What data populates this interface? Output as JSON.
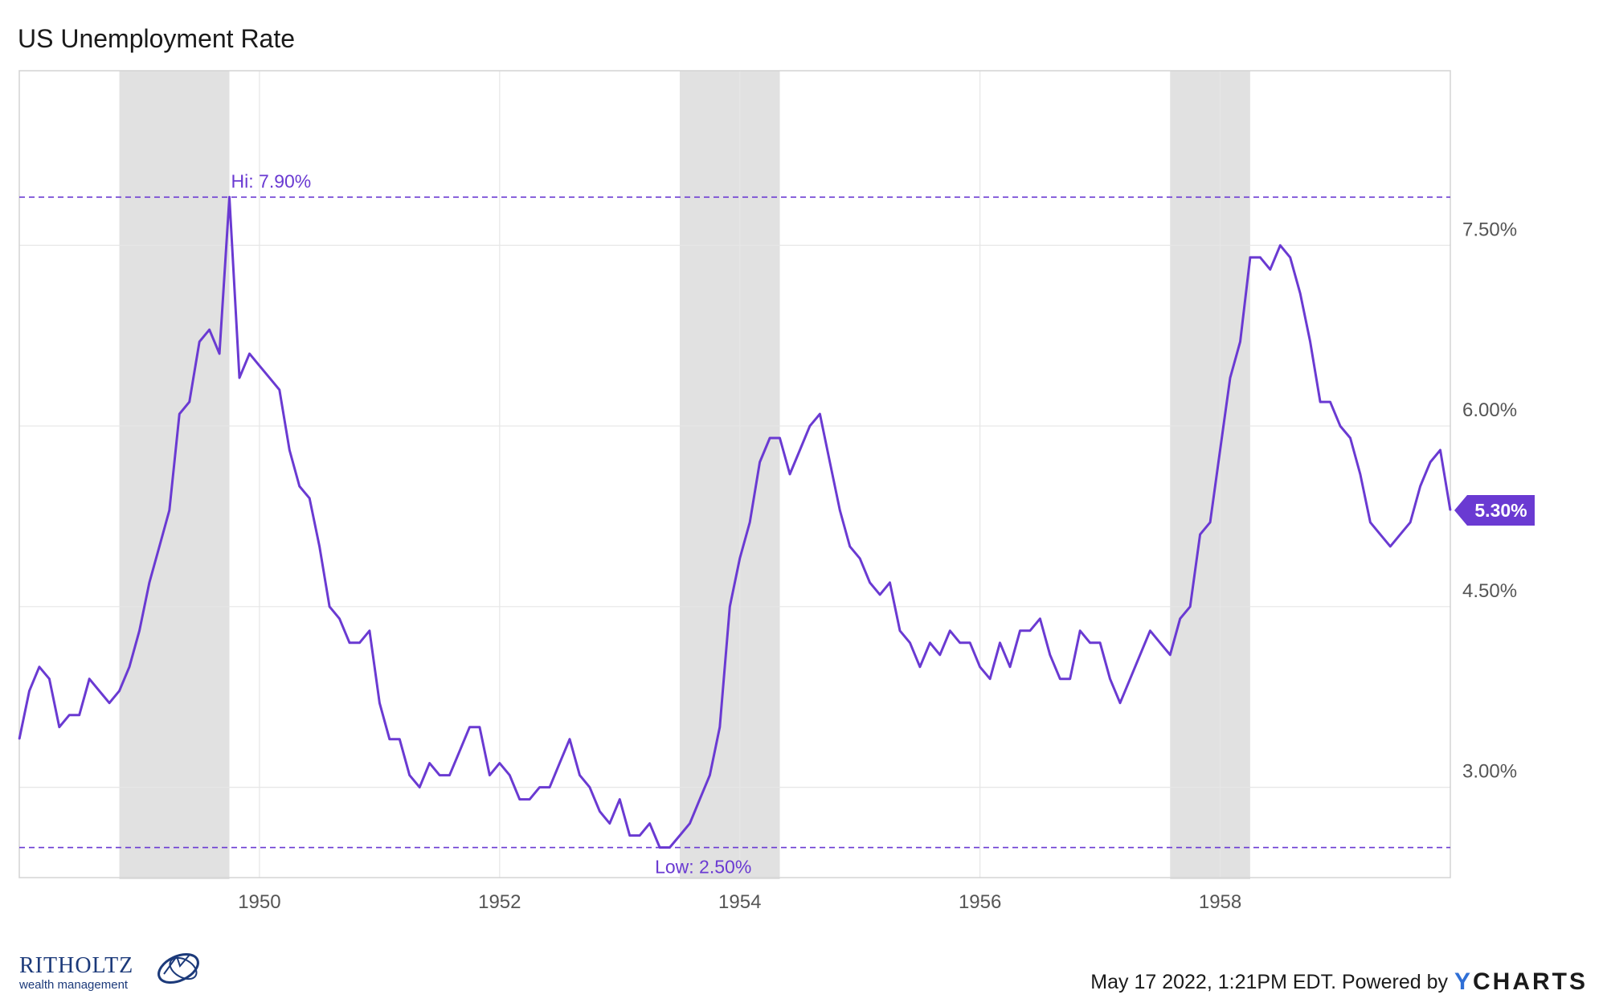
{
  "chart_data": {
    "type": "line",
    "title": "US Unemployment Rate",
    "series": [
      {
        "color": "#6a3ad2",
        "start": "1948-01",
        "frequency": "monthly",
        "values": [
          3.4,
          3.8,
          4.0,
          3.9,
          3.5,
          3.6,
          3.6,
          3.9,
          3.8,
          3.7,
          3.8,
          4.0,
          4.3,
          4.7,
          5.0,
          5.3,
          6.1,
          6.2,
          6.7,
          6.8,
          6.6,
          7.9,
          6.4,
          6.6,
          6.5,
          6.4,
          6.3,
          5.8,
          5.5,
          5.4,
          5.0,
          4.5,
          4.4,
          4.2,
          4.2,
          4.3,
          3.7,
          3.4,
          3.4,
          3.1,
          3.0,
          3.2,
          3.1,
          3.1,
          3.3,
          3.5,
          3.5,
          3.1,
          3.2,
          3.1,
          2.9,
          2.9,
          3.0,
          3.0,
          3.2,
          3.4,
          3.1,
          3.0,
          2.8,
          2.7,
          2.9,
          2.6,
          2.6,
          2.7,
          2.5,
          2.5,
          2.6,
          2.7,
          2.9,
          3.1,
          3.5,
          4.5,
          4.9,
          5.2,
          5.7,
          5.9,
          5.9,
          5.6,
          5.8,
          6.0,
          6.1,
          5.7,
          5.3,
          5.0,
          4.9,
          4.7,
          4.6,
          4.7,
          4.3,
          4.2,
          4.0,
          4.2,
          4.1,
          4.3,
          4.2,
          4.2,
          4.0,
          3.9,
          4.2,
          4.0,
          4.3,
          4.3,
          4.4,
          4.1,
          3.9,
          3.9,
          4.3,
          4.2,
          4.2,
          3.9,
          3.7,
          3.9,
          4.1,
          4.3,
          4.2,
          4.1,
          4.4,
          4.5,
          5.1,
          5.2,
          5.8,
          6.4,
          6.7,
          7.4,
          7.4,
          7.3,
          7.5,
          7.4,
          7.1,
          6.7,
          6.2,
          6.2,
          6.0,
          5.9,
          5.6,
          5.2,
          5.1,
          5.0,
          5.1,
          5.2,
          5.5,
          5.7,
          5.8,
          5.3
        ]
      }
    ],
    "x_ticks": [
      "1950",
      "1952",
      "1954",
      "1956",
      "1958"
    ],
    "y_ticks": [
      "3.00%",
      "4.50%",
      "6.00%",
      "7.50%"
    ],
    "y_tick_values": [
      3.0,
      4.5,
      6.0,
      7.5
    ],
    "ylim": [
      2.25,
      8.95
    ],
    "xlim": [
      "1948-01",
      "1959-12"
    ],
    "recessions": [
      [
        "1948-11",
        "1949-10"
      ],
      [
        "1953-07",
        "1954-05"
      ],
      [
        "1957-08",
        "1958-04"
      ]
    ],
    "annotations": {
      "high": {
        "label": "Hi: 7.90%",
        "value": 7.9,
        "date": "1949-10"
      },
      "low": {
        "label": "Low: 2.50%",
        "value": 2.5,
        "date": "1953-05"
      }
    },
    "last_value_label": "5.30%",
    "grid": true,
    "accent_color": "#6a3ad2",
    "recession_color": "#e1e1e1"
  },
  "footer": {
    "timestamp": "May 17 2022, 1:21PM EDT. Powered by",
    "brand_initial": "Y",
    "brand_rest": "CHARTS",
    "logo_name": "RITHOLTZ",
    "logo_sub": "wealth management"
  }
}
